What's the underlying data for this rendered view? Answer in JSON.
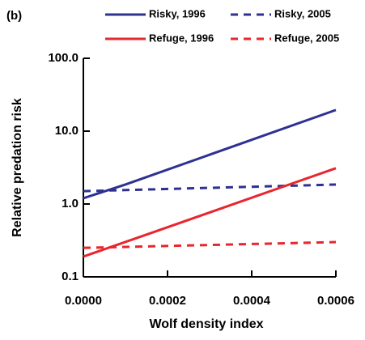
{
  "chart_data": {
    "type": "line",
    "panel_label": "(b)",
    "x_label": "Wolf density index",
    "y_label": "Relative predation risk",
    "xlim": [
      0,
      0.0006
    ],
    "xticks": [
      {
        "value": 0,
        "label": "0.0000"
      },
      {
        "value": 0.0002,
        "label": "0.0002"
      },
      {
        "value": 0.0004,
        "label": "0.0004"
      },
      {
        "value": 0.0006,
        "label": "0.0006"
      }
    ],
    "ylim": [
      0.1,
      100
    ],
    "log_y": true,
    "yticks": [
      0.1,
      {
        "value": 1,
        "label": "1.0"
      },
      {
        "value": 10,
        "label": "10.0"
      },
      {
        "value": 100,
        "label": "100.0"
      }
    ],
    "series": [
      {
        "name": "Risky, 1996",
        "color": "#2e3192",
        "style": "solid",
        "x": [
          0,
          0.0001,
          0.0006
        ],
        "values": [
          1.2,
          1.85,
          19.5
        ]
      },
      {
        "name": "Risky, 2005",
        "color": "#2e3192",
        "style": "dashed",
        "x": [
          0,
          0.0006
        ],
        "values": [
          1.5,
          1.85
        ]
      },
      {
        "name": "Refuge, 1996",
        "color": "#e8262d",
        "style": "solid",
        "x": [
          0,
          0.00015,
          0.0006
        ],
        "values": [
          0.19,
          0.38,
          3.1
        ]
      },
      {
        "name": "Refuge, 2005",
        "color": "#e8262d",
        "style": "dashed",
        "x": [
          0,
          0.0006
        ],
        "values": [
          0.25,
          0.3
        ]
      }
    ]
  }
}
